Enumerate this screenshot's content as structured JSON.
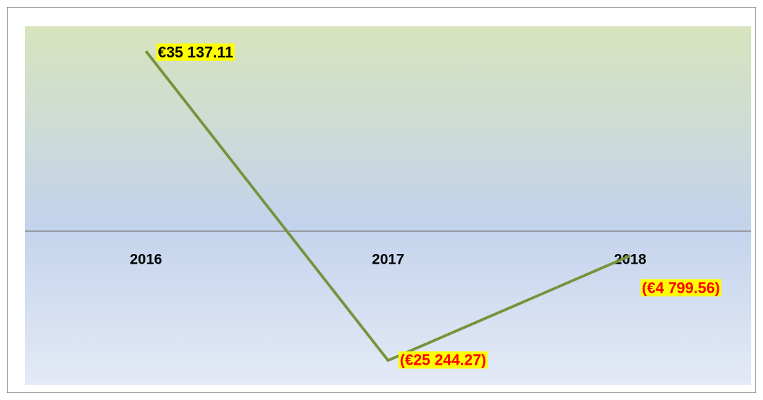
{
  "chart_data": {
    "type": "line",
    "categories": [
      "2016",
      "2017",
      "2018"
    ],
    "series": [
      {
        "color": "#77933c",
        "values": [
          35137.11,
          -25244.27,
          -4799.56
        ],
        "value_labels": [
          "€35 137.11",
          "(€25 244.27)",
          "(€4 799.56)"
        ]
      }
    ],
    "ylim": [
      -30000,
      40000
    ],
    "label_color": "#000000",
    "negative_label_color": "#ff0000",
    "label_background": "#ffff00"
  }
}
